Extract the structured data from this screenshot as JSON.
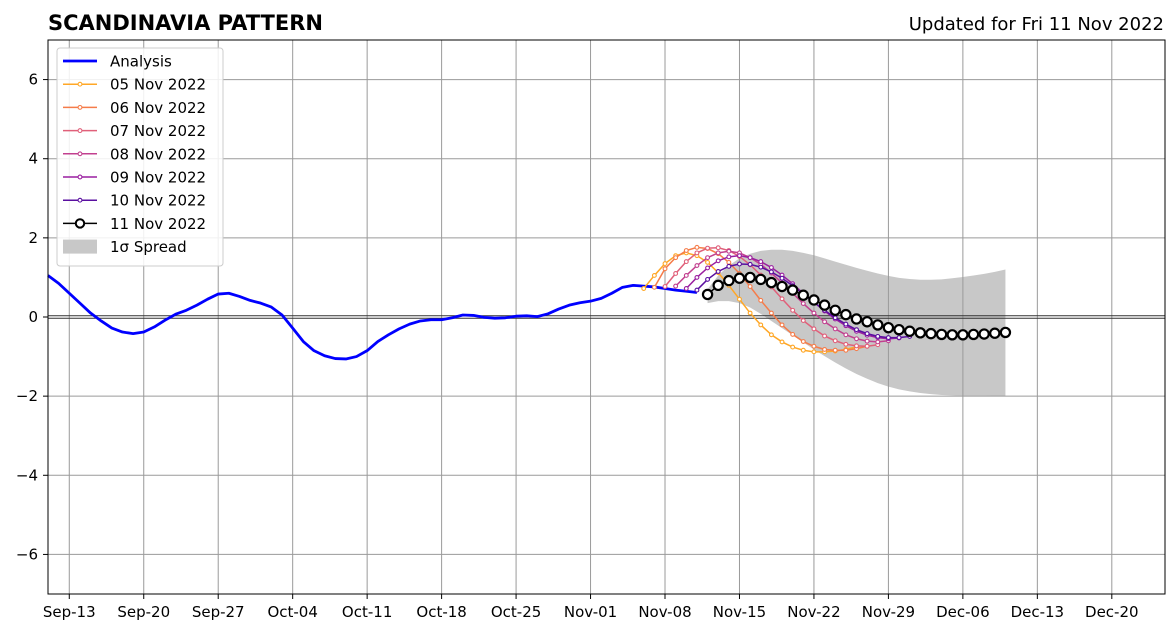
{
  "chart_data": {
    "type": "line",
    "title": "SCANDINAVIA PATTERN",
    "subtitle": "Updated for Fri 11 Nov 2022",
    "xlabel": "",
    "ylabel": "",
    "x_range": [
      "2022-09-11",
      "2022-12-25"
    ],
    "ylim": [
      -7,
      7
    ],
    "y_ticks": [
      -6,
      -4,
      -2,
      0,
      2,
      4,
      6
    ],
    "y_tick_labels": [
      "−6",
      "−4",
      "−2",
      "0",
      "2",
      "4",
      "6"
    ],
    "x_ticks": [
      "2022-09-13",
      "2022-09-20",
      "2022-09-27",
      "2022-10-04",
      "2022-10-11",
      "2022-10-18",
      "2022-10-25",
      "2022-11-01",
      "2022-11-08",
      "2022-11-15",
      "2022-11-22",
      "2022-11-29",
      "2022-12-06",
      "2022-12-13",
      "2022-12-20"
    ],
    "x_tick_labels": [
      "Sep-13",
      "Sep-20",
      "Sep-27",
      "Oct-04",
      "Oct-11",
      "Oct-18",
      "Oct-25",
      "Nov-01",
      "Nov-08",
      "Nov-15",
      "Nov-22",
      "Nov-29",
      "Dec-06",
      "Dec-13",
      "Dec-20"
    ],
    "grid": true,
    "zero_line": true,
    "legend_position": "top-left",
    "analysis": {
      "name": "Analysis",
      "color": "#0000ff",
      "start_date": "2022-09-11",
      "values": [
        1.05,
        0.85,
        0.6,
        0.35,
        0.1,
        -0.1,
        -0.28,
        -0.38,
        -0.42,
        -0.38,
        -0.25,
        -0.08,
        0.07,
        0.17,
        0.3,
        0.45,
        0.58,
        0.6,
        0.52,
        0.42,
        0.35,
        0.25,
        0.05,
        -0.28,
        -0.62,
        -0.85,
        -0.98,
        -1.05,
        -1.06,
        -1.0,
        -0.85,
        -0.62,
        -0.45,
        -0.3,
        -0.18,
        -0.1,
        -0.07,
        -0.07,
        -0.02,
        0.05,
        0.04,
        -0.01,
        -0.03,
        -0.02,
        0.02,
        0.03,
        0.01,
        0.08,
        0.2,
        0.3,
        0.36,
        0.4,
        0.47,
        0.6,
        0.75,
        0.8,
        0.78,
        0.76,
        0.72,
        0.68,
        0.65,
        0.62
      ]
    },
    "forecasts": [
      {
        "name": "05 Nov 2022",
        "color": "#ffa726",
        "start_date": "2022-11-06",
        "values": [
          0.72,
          1.05,
          1.35,
          1.55,
          1.62,
          1.55,
          1.38,
          1.12,
          0.8,
          0.45,
          0.1,
          -0.2,
          -0.45,
          -0.63,
          -0.76,
          -0.84,
          -0.88,
          -0.88,
          -0.86,
          -0.82,
          -0.75
        ]
      },
      {
        "name": "06 Nov 2022",
        "color": "#f57c4a",
        "start_date": "2022-11-07",
        "values": [
          0.75,
          1.22,
          1.5,
          1.68,
          1.76,
          1.73,
          1.6,
          1.38,
          1.1,
          0.77,
          0.42,
          0.1,
          -0.2,
          -0.44,
          -0.62,
          -0.74,
          -0.82,
          -0.84,
          -0.84,
          -0.8,
          -0.74
        ]
      },
      {
        "name": "07 Nov 2022",
        "color": "#e0607a",
        "start_date": "2022-11-08",
        "values": [
          0.77,
          1.1,
          1.4,
          1.62,
          1.74,
          1.75,
          1.68,
          1.53,
          1.32,
          1.06,
          0.76,
          0.46,
          0.17,
          -0.09,
          -0.3,
          -0.48,
          -0.6,
          -0.69,
          -0.73,
          -0.74,
          -0.7
        ]
      },
      {
        "name": "08 Nov 2022",
        "color": "#c2408f",
        "start_date": "2022-11-09",
        "values": [
          0.78,
          1.05,
          1.3,
          1.5,
          1.62,
          1.66,
          1.62,
          1.5,
          1.33,
          1.11,
          0.86,
          0.6,
          0.34,
          0.1,
          -0.12,
          -0.3,
          -0.45,
          -0.55,
          -0.61,
          -0.63,
          -0.6
        ]
      },
      {
        "name": "09 Nov 2022",
        "color": "#9a1fa0",
        "start_date": "2022-11-10",
        "values": [
          0.72,
          1.0,
          1.24,
          1.42,
          1.52,
          1.55,
          1.5,
          1.4,
          1.25,
          1.06,
          0.84,
          0.6,
          0.37,
          0.15,
          -0.05,
          -0.22,
          -0.36,
          -0.46,
          -0.52,
          -0.55,
          -0.53
        ]
      },
      {
        "name": "10 Nov 2022",
        "color": "#5a0fa0",
        "start_date": "2022-11-11",
        "values": [
          0.68,
          0.95,
          1.15,
          1.28,
          1.34,
          1.33,
          1.26,
          1.14,
          0.98,
          0.79,
          0.58,
          0.37,
          0.17,
          -0.02,
          -0.18,
          -0.32,
          -0.42,
          -0.49,
          -0.52,
          -0.52,
          -0.49
        ]
      }
    ],
    "latest": {
      "name": "11 Nov 2022",
      "color": "#000000",
      "start_date": "2022-11-12",
      "values": [
        0.57,
        0.8,
        0.92,
        0.98,
        1.0,
        0.95,
        0.87,
        0.77,
        0.68,
        0.55,
        0.43,
        0.3,
        0.17,
        0.06,
        -0.05,
        -0.12,
        -0.2,
        -0.27,
        -0.32,
        -0.36,
        -0.4,
        -0.42,
        -0.44,
        -0.45,
        -0.45,
        -0.44,
        -0.43,
        -0.41,
        -0.39
      ]
    },
    "spread": {
      "name": "1σ Spread",
      "color": "#c8c8c8",
      "start_date": "2022-11-12",
      "upper": [
        0.7,
        1.05,
        1.3,
        1.48,
        1.6,
        1.67,
        1.7,
        1.7,
        1.67,
        1.62,
        1.56,
        1.48,
        1.4,
        1.32,
        1.24,
        1.17,
        1.1,
        1.04,
        0.99,
        0.96,
        0.94,
        0.94,
        0.95,
        0.98,
        1.01,
        1.05,
        1.09,
        1.14,
        1.2
      ],
      "lower": [
        0.35,
        0.4,
        0.4,
        0.35,
        0.24,
        0.08,
        -0.1,
        -0.28,
        -0.46,
        -0.64,
        -0.82,
        -0.99,
        -1.15,
        -1.3,
        -1.44,
        -1.56,
        -1.67,
        -1.76,
        -1.83,
        -1.88,
        -1.92,
        -1.95,
        -1.97,
        -1.98,
        -1.99,
        -1.99,
        -1.99,
        -2.0,
        -2.0
      ]
    }
  }
}
